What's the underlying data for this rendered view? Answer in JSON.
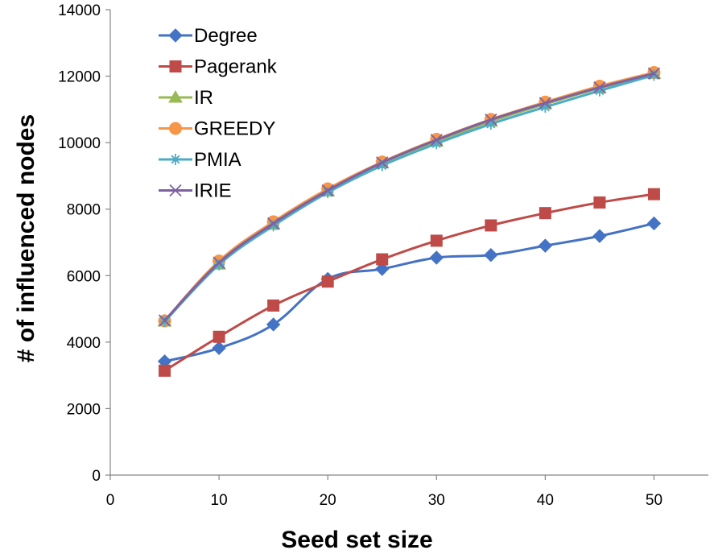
{
  "chart_data": {
    "type": "line",
    "title": "",
    "xlabel": "Seed set size",
    "ylabel": "# of influenced nodes",
    "xlim": [
      0,
      55
    ],
    "ylim": [
      0,
      14000
    ],
    "xticks": [
      0,
      10,
      20,
      30,
      40,
      50
    ],
    "yticks": [
      0,
      2000,
      4000,
      6000,
      8000,
      10000,
      12000,
      14000
    ],
    "grid": false,
    "legend_position": "top-left",
    "x": [
      5,
      10,
      15,
      20,
      25,
      30,
      35,
      40,
      45,
      50
    ],
    "series": [
      {
        "name": "Degree",
        "color": "#4472C4",
        "marker": "diamond",
        "values": [
          3420,
          3820,
          4530,
          5900,
          6200,
          6540,
          6620,
          6900,
          7190,
          7570
        ]
      },
      {
        "name": "Pagerank",
        "color": "#BE4B48",
        "marker": "square",
        "values": [
          3140,
          4160,
          5100,
          5820,
          6490,
          7050,
          7510,
          7880,
          8200,
          8450
        ]
      },
      {
        "name": "IR",
        "color": "#98B954",
        "marker": "triangle",
        "values": [
          4630,
          6340,
          7540,
          8540,
          9390,
          10040,
          10640,
          11160,
          11640,
          12080
        ]
      },
      {
        "name": "GREEDY",
        "color": "#F79646",
        "marker": "circle",
        "values": [
          4640,
          6440,
          7620,
          8610,
          9420,
          10100,
          10700,
          11220,
          11700,
          12110
        ]
      },
      {
        "name": "PMIA",
        "color": "#4BACC6",
        "marker": "asterisk",
        "values": [
          4620,
          6330,
          7500,
          8500,
          9310,
          9970,
          10560,
          11070,
          11560,
          12030
        ]
      },
      {
        "name": "IRIE",
        "color": "#7F60A0",
        "marker": "x",
        "values": [
          4650,
          6390,
          7570,
          8560,
          9400,
          10080,
          10690,
          11190,
          11660,
          12080
        ]
      }
    ]
  }
}
